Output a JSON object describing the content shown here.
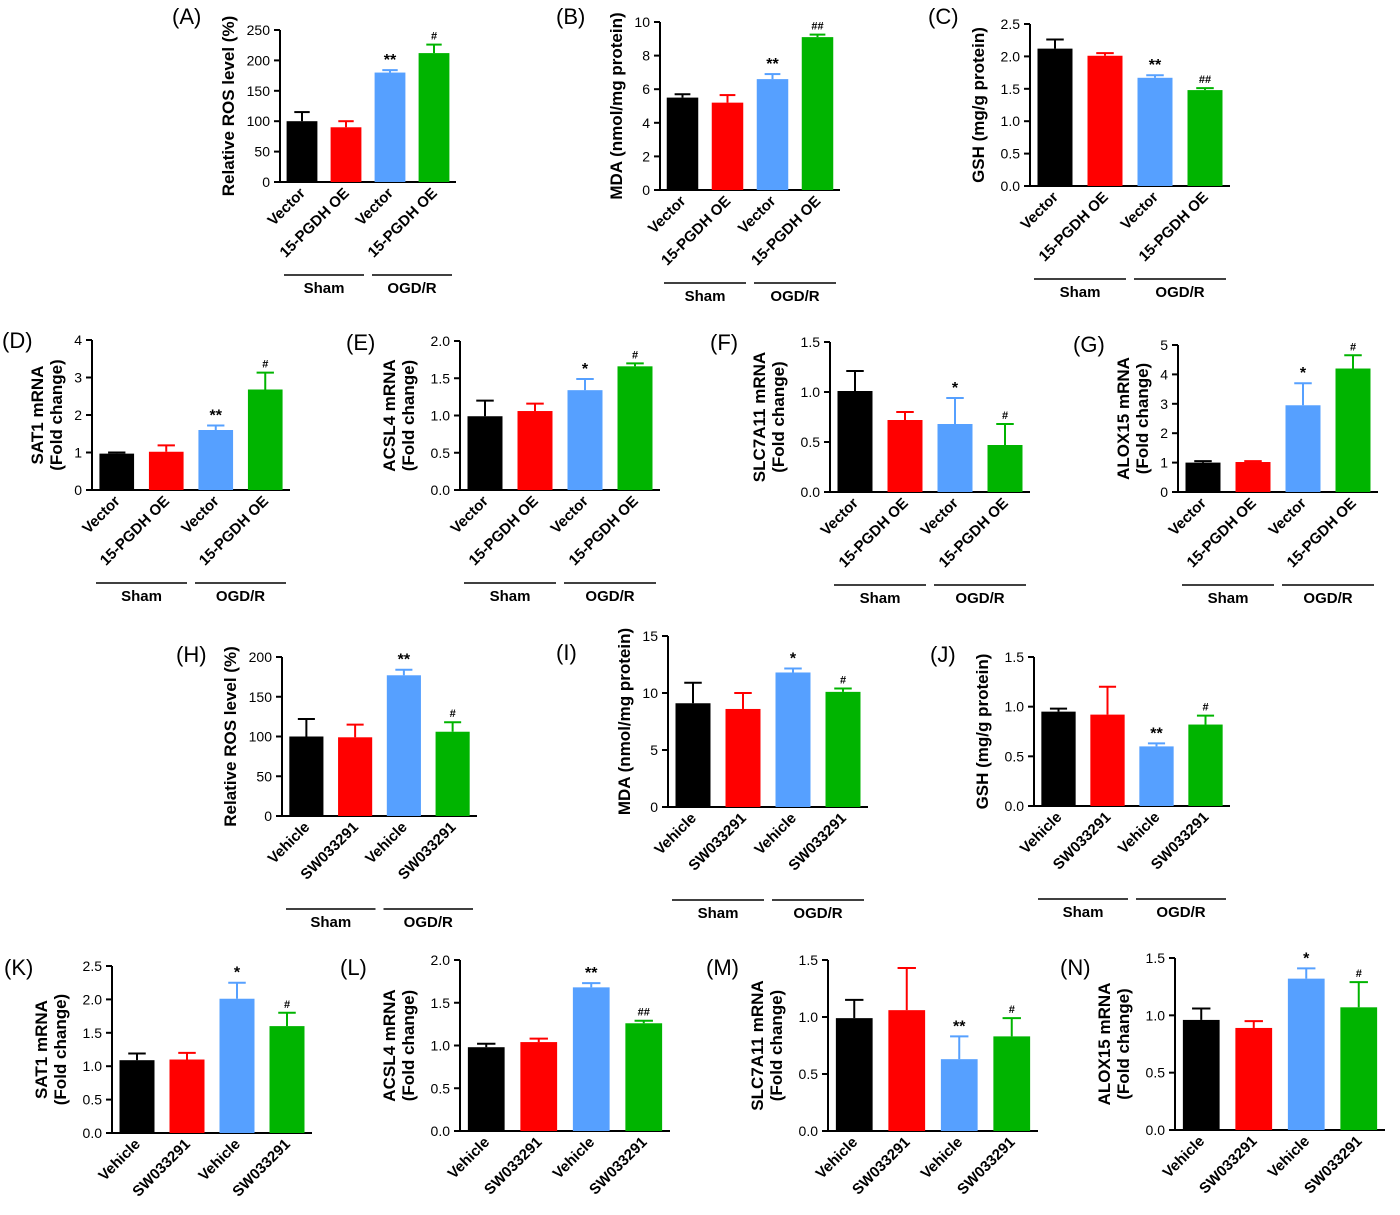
{
  "colors": [
    "#000000",
    "#ff0000",
    "#56a0ff",
    "#00b400"
  ],
  "group_labels": [
    "Sham",
    "OGD/R"
  ],
  "chart_data": [
    {
      "panel": "(A)",
      "type": "bar",
      "ylabel": [
        "Relative ROS level (%)"
      ],
      "ylim": [
        0,
        250
      ],
      "ticks": [
        "0",
        "50",
        "100",
        "150",
        "200",
        "250"
      ],
      "categories": [
        "Vector",
        "15-PGDH OE",
        "Vector",
        "15-PGDH OE"
      ],
      "groups": [
        "Sham",
        "OGD/R"
      ],
      "values": [
        100,
        90,
        180,
        212
      ],
      "errors": [
        15,
        10,
        4,
        14
      ],
      "annotations": [
        "",
        "",
        "**",
        "#"
      ]
    },
    {
      "panel": "(B)",
      "type": "bar",
      "ylabel": [
        "MDA (nmol/mg protein)"
      ],
      "ylim": [
        0,
        10
      ],
      "ticks": [
        "0",
        "2",
        "4",
        "6",
        "8",
        "10"
      ],
      "categories": [
        "Vector",
        "15-PGDH OE",
        "Vector",
        "15-PGDH OE"
      ],
      "groups": [
        "Sham",
        "OGD/R"
      ],
      "values": [
        5.5,
        5.2,
        6.6,
        9.1
      ],
      "errors": [
        0.2,
        0.45,
        0.3,
        0.15
      ],
      "annotations": [
        "",
        "",
        "**",
        "##"
      ]
    },
    {
      "panel": "(C)",
      "type": "bar",
      "ylabel": [
        "GSH (mg/g protein)"
      ],
      "ylim": [
        0,
        2.5
      ],
      "ticks": [
        "0.0",
        "0.5",
        "1.0",
        "1.5",
        "2.0",
        "2.5"
      ],
      "categories": [
        "Vector",
        "15-PGDH OE",
        "Vector",
        "15-PGDH OE"
      ],
      "groups": [
        "Sham",
        "OGD/R"
      ],
      "values": [
        2.12,
        2.01,
        1.67,
        1.48
      ],
      "errors": [
        0.14,
        0.04,
        0.04,
        0.03
      ],
      "annotations": [
        "",
        "",
        "**",
        "##"
      ]
    },
    {
      "panel": "(D)",
      "type": "bar",
      "ylabel": [
        "SAT1 mRNA",
        "(Fold change)"
      ],
      "ylim": [
        0,
        4
      ],
      "ticks": [
        "0",
        "1",
        "2",
        "3",
        "4"
      ],
      "categories": [
        "Vector",
        "15-PGDH OE",
        "Vector",
        "15-PGDH OE"
      ],
      "groups": [
        "Sham",
        "OGD/R"
      ],
      "values": [
        0.97,
        1.02,
        1.6,
        2.68
      ],
      "errors": [
        0.03,
        0.17,
        0.12,
        0.45
      ],
      "annotations": [
        "",
        "",
        "**",
        "#"
      ]
    },
    {
      "panel": "(E)",
      "type": "bar",
      "ylabel": [
        "ACSL4 mRNA",
        "(Fold change)"
      ],
      "ylim": [
        0,
        2
      ],
      "ticks": [
        "0.0",
        "0.5",
        "1.0",
        "1.5",
        "2.0"
      ],
      "categories": [
        "Vector",
        "15-PGDH OE",
        "Vector",
        "15-PGDH OE"
      ],
      "groups": [
        "Sham",
        "OGD/R"
      ],
      "values": [
        0.99,
        1.06,
        1.34,
        1.66
      ],
      "errors": [
        0.21,
        0.1,
        0.15,
        0.04
      ],
      "annotations": [
        "",
        "",
        "*",
        "#"
      ]
    },
    {
      "panel": "(F)",
      "type": "bar",
      "ylabel": [
        "SLC7A11 mRNA",
        "(Fold change)"
      ],
      "ylim": [
        0,
        1.5
      ],
      "ticks": [
        "0.0",
        "0.5",
        "1.0",
        "1.5"
      ],
      "categories": [
        "Vector",
        "15-PGDH OE",
        "Vector",
        "15-PGDH OE"
      ],
      "groups": [
        "Sham",
        "OGD/R"
      ],
      "values": [
        1.01,
        0.72,
        0.68,
        0.47
      ],
      "errors": [
        0.2,
        0.08,
        0.26,
        0.21
      ],
      "annotations": [
        "",
        "",
        "*",
        "#"
      ]
    },
    {
      "panel": "(G)",
      "type": "bar",
      "ylabel": [
        "ALOX15 mRNA",
        "(Fold change)"
      ],
      "ylim": [
        0,
        5
      ],
      "ticks": [
        "0",
        "1",
        "2",
        "3",
        "4",
        "5"
      ],
      "categories": [
        "Vector",
        "15-PGDH OE",
        "Vector",
        "15-PGDH OE"
      ],
      "groups": [
        "Sham",
        "OGD/R"
      ],
      "values": [
        1.0,
        1.02,
        2.95,
        4.2
      ],
      "errors": [
        0.05,
        0.03,
        0.75,
        0.45
      ],
      "annotations": [
        "",
        "",
        "*",
        "#"
      ]
    },
    {
      "panel": "(H)",
      "type": "bar",
      "ylabel": [
        "Relative ROS level (%)"
      ],
      "ylim": [
        0,
        200
      ],
      "ticks": [
        "0",
        "50",
        "100",
        "150",
        "200"
      ],
      "categories": [
        "Vehicle",
        "SW033291",
        "Vehicle",
        "SW033291"
      ],
      "groups": [
        "Sham",
        "OGD/R"
      ],
      "values": [
        100,
        99,
        177,
        106
      ],
      "errors": [
        22,
        16,
        7,
        12
      ],
      "annotations": [
        "",
        "",
        "**",
        "#"
      ]
    },
    {
      "panel": "(I)",
      "type": "bar",
      "ylabel": [
        "MDA (nmol/mg protein)"
      ],
      "ylim": [
        0,
        15
      ],
      "ticks": [
        "0",
        "5",
        "10",
        "15"
      ],
      "categories": [
        "Vehicle",
        "SW033291",
        "Vehicle",
        "SW033291"
      ],
      "groups": [
        "Sham",
        "OGD/R"
      ],
      "values": [
        9.1,
        8.6,
        11.8,
        10.1
      ],
      "errors": [
        1.8,
        1.4,
        0.35,
        0.3
      ],
      "annotations": [
        "",
        "",
        "*",
        "#"
      ]
    },
    {
      "panel": "(J)",
      "type": "bar",
      "ylabel": [
        "GSH (mg/g protein)"
      ],
      "ylim": [
        0,
        1.5
      ],
      "ticks": [
        "0.0",
        "0.5",
        "1.0",
        "1.5"
      ],
      "categories": [
        "Vehicle",
        "SW033291",
        "Vehicle",
        "SW033291"
      ],
      "groups": [
        "Sham",
        "OGD/R"
      ],
      "values": [
        0.95,
        0.92,
        0.6,
        0.82
      ],
      "errors": [
        0.03,
        0.28,
        0.03,
        0.09
      ],
      "annotations": [
        "",
        "",
        "**",
        "#"
      ]
    },
    {
      "panel": "(K)",
      "type": "bar",
      "ylabel": [
        "SAT1 mRNA",
        "(Fold change)"
      ],
      "ylim": [
        0,
        2.5
      ],
      "ticks": [
        "0.0",
        "0.5",
        "1.0",
        "1.5",
        "2.0",
        "2.5"
      ],
      "categories": [
        "Vehicle",
        "SW033291",
        "Vehicle",
        "SW033291"
      ],
      "groups": [
        "Sham",
        "OGD/R"
      ],
      "values": [
        1.09,
        1.1,
        2.01,
        1.6
      ],
      "errors": [
        0.1,
        0.1,
        0.24,
        0.2
      ],
      "annotations": [
        "",
        "",
        "*",
        "#"
      ]
    },
    {
      "panel": "(L)",
      "type": "bar",
      "ylabel": [
        "ACSL4 mRNA",
        "(Fold change)"
      ],
      "ylim": [
        0,
        2
      ],
      "ticks": [
        "0.0",
        "0.5",
        "1.0",
        "1.5",
        "2.0"
      ],
      "categories": [
        "Vehicle",
        "SW033291",
        "Vehicle",
        "SW033291"
      ],
      "groups": [
        "Sham",
        "OGD/R"
      ],
      "values": [
        0.98,
        1.04,
        1.68,
        1.26
      ],
      "errors": [
        0.04,
        0.04,
        0.05,
        0.03
      ],
      "annotations": [
        "",
        "",
        "**",
        "##"
      ]
    },
    {
      "panel": "(M)",
      "type": "bar",
      "ylabel": [
        "SLC7A11 mRNA",
        "(Fold change)"
      ],
      "ylim": [
        0,
        1.5
      ],
      "ticks": [
        "0.0",
        "0.5",
        "1.0",
        "1.5"
      ],
      "categories": [
        "Vehicle",
        "SW033291",
        "Vehicle",
        "SW033291"
      ],
      "groups": [
        "Sham",
        "OGD/R"
      ],
      "values": [
        0.99,
        1.06,
        0.63,
        0.83
      ],
      "errors": [
        0.16,
        0.37,
        0.2,
        0.16
      ],
      "annotations": [
        "",
        "",
        "**",
        "#"
      ]
    },
    {
      "panel": "(N)",
      "type": "bar",
      "ylabel": [
        "ALOX15 mRNA",
        "(Fold change)"
      ],
      "ylim": [
        0,
        1.5
      ],
      "ticks": [
        "0.0",
        "0.5",
        "1.0",
        "1.5"
      ],
      "categories": [
        "Vehicle",
        "SW033291",
        "Vehicle",
        "SW033291"
      ],
      "groups": [
        "Sham",
        "OGD/R"
      ],
      "values": [
        0.96,
        0.89,
        1.32,
        1.07
      ],
      "errors": [
        0.1,
        0.06,
        0.09,
        0.22
      ],
      "annotations": [
        "",
        "",
        "*",
        "#"
      ]
    }
  ]
}
